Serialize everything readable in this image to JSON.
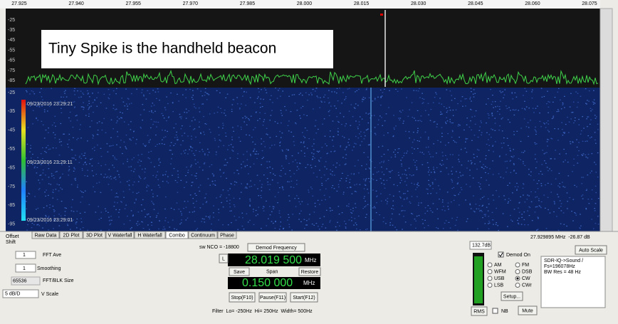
{
  "spectrum": {
    "freq_ticks": [
      "27.925",
      "27.940",
      "27.955",
      "27.970",
      "27.985",
      "28.000",
      "28.015",
      "28.030",
      "28.045",
      "28.060",
      "28.075"
    ],
    "db_ticks": [
      "-25",
      "-35",
      "-45",
      "-55",
      "-65",
      "-75",
      "-85"
    ],
    "annotation": "Tiny Spike is the handheld beacon"
  },
  "waterfall": {
    "db_ticks": [
      "-25",
      "-35",
      "-45",
      "-55",
      "-65",
      "-75",
      "-85",
      "-95"
    ],
    "timestamps": [
      "09/23/2016 23:29:21",
      "09/23/2016 23:29:11",
      "09/23/2016 23:29:01"
    ]
  },
  "offset_shift": [
    "Offset",
    "Shift"
  ],
  "tabs": [
    "Raw Data",
    "2D Plot",
    "3D Plot",
    "V Waterfall",
    "H Waterfall",
    "Combo",
    "Continuum",
    "Phase"
  ],
  "readout": "27.929895 MHz  -26.87 dB",
  "controls": {
    "auto_scale": "Auto Scale",
    "fft_ave_value": "1",
    "fft_ave_label": "FFT Ave",
    "smoothing_value": "1",
    "smoothing_label": "Smoothing",
    "fft_size_value": "65536",
    "fft_size_label": "FFT/BLK Size",
    "vscale_value": "5 dB/D",
    "vscale_label": "V Scale",
    "nco": "sw NCO = -18800",
    "demod_freq_button": "Demod Frequency",
    "l_button": "L",
    "center_freq": "28.019 500",
    "center_unit": "MHz",
    "save": "Save",
    "span_label": "Span",
    "restore": "Restore",
    "span_freq": "0.150 000",
    "span_unit": "MHz",
    "stop": "Stop(F10)",
    "pause": "Pause(F11)",
    "start": "Start(F12)",
    "filter": "Filter  Lo= -250Hz  Hi= 250Hz  Width= 500Hz",
    "level": "132.7dB",
    "demod_on": "Demod On",
    "modes": [
      "AM",
      "WFM",
      "USB",
      "LSB",
      "FM",
      "DSB",
      "CW",
      "CWr"
    ],
    "setup": "Setup...",
    "rms": "RMS",
    "nb": "NB",
    "mute": "Mute",
    "info": [
      "SDR-IQ->Sound /",
      "Fs=196078Hz",
      "BW Res = 48 Hz"
    ]
  }
}
